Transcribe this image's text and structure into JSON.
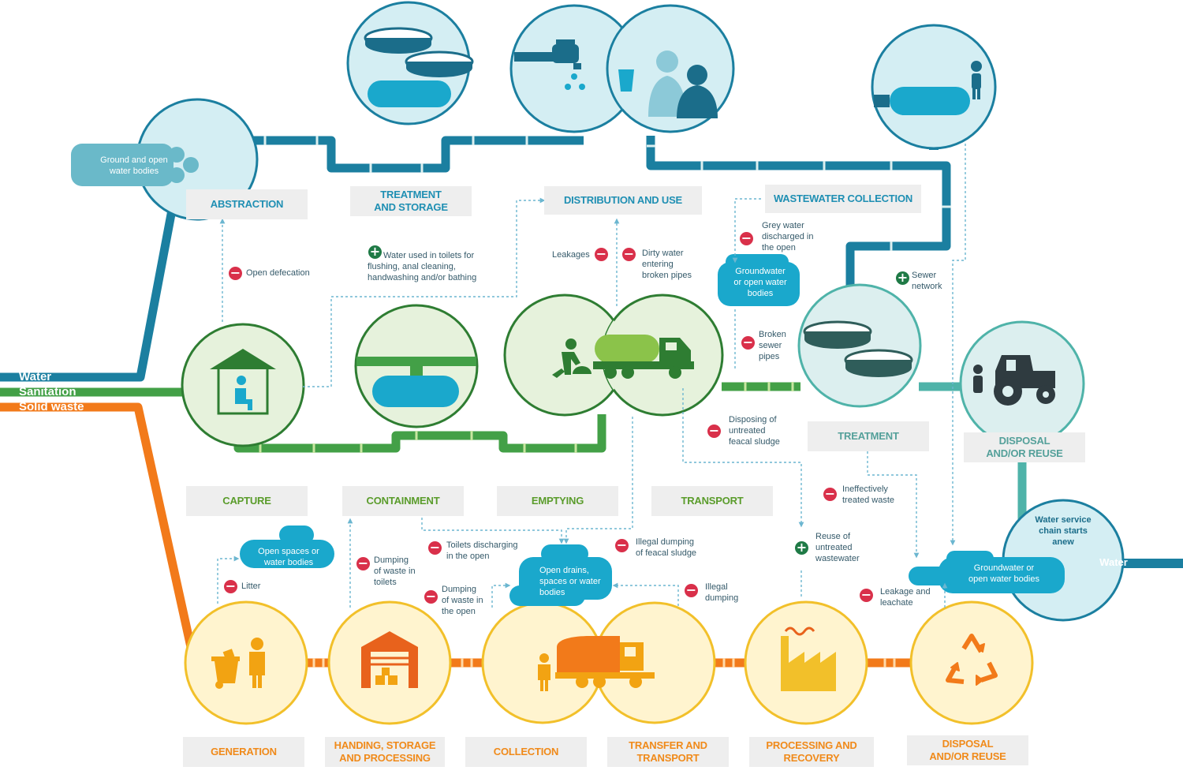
{
  "legend": {
    "water": "Water",
    "sanitation": "Sanitation",
    "solid_waste": "Solid waste"
  },
  "colors": {
    "water": "#1b7fa0",
    "sanitation": "#43a047",
    "solid_waste": "#f27a1a",
    "treated": "#4fb3a9",
    "label_bg": "#eeeeee",
    "negative": "#d9304a",
    "positive": "#1f7a46"
  },
  "stages": {
    "water": {
      "abstraction": "ABSTRACTION",
      "treatment_storage": "TREATMENT\nAND STORAGE",
      "distribution_use": "DISTRIBUTION AND USE",
      "wastewater_collection": "WASTEWATER COLLECTION"
    },
    "sanitation": {
      "capture": "CAPTURE",
      "containment": "CONTAINMENT",
      "emptying": "EMPTYING",
      "transport": "TRANSPORT",
      "treatment": "TREATMENT",
      "disposal": "DISPOSAL\nAND/OR REUSE"
    },
    "solid_waste": {
      "generation": "GENERATION",
      "handling": "HANDING, STORAGE\nAND PROCESSING",
      "collection": "COLLECTION",
      "transfer": "TRANSFER AND\nTRANSPORT",
      "processing": "PROCESSING AND\nRECOVERY",
      "disposal": "DISPOSAL\nAND/OR REUSE"
    }
  },
  "water_bodies": {
    "source": "Ground and open\nwater bodies",
    "groundwater_mid": "Groundwater\nor open water\nbodies",
    "open_spaces": "Open spaces or\nwater bodies",
    "open_drains": "Open drains,\nspaces or water\nbodies",
    "groundwater_right": "Groundwater or\nopen water bodies",
    "restart": "Water service\nchain starts\nanew",
    "water_out": "Water"
  },
  "annotations": {
    "open_defecation": "Open defecation",
    "water_used_toilets": "Water used in toilets for\nflushing, anal cleaning,\nhandwashing and/or bathing",
    "leakages": "Leakages",
    "dirty_water": "Dirty water\nentering\nbroken pipes",
    "grey_water": "Grey water\ndischarged in\nthe open",
    "sewer_network": "Sewer\nnetwork",
    "broken_sewer": "Broken\nsewer\npipes",
    "disposing_sludge": "Disposing of\nuntreated\nfeacal sludge",
    "ineffective": "Ineffectively\ntreated waste",
    "reuse_untreated": "Reuse of\nuntreated\nwastewater",
    "litter": "Litter",
    "dumping_toilets": "Dumping\nof waste in\ntoilets",
    "toilets_open": "Toilets discharging\nin the open",
    "dumping_open": "Dumping\nof waste in\nthe open",
    "illegal_sludge": "Illegal dumping\nof feacal sludge",
    "illegal_dumping": "Illegal\ndumping",
    "leakage_leachate": "Leakage and\nleachate"
  },
  "icons": [
    "storage-tanks-icon",
    "tap-icon",
    "people-icon",
    "tank-icon",
    "latrine-icon",
    "pit-tank-icon",
    "desludging-truck-icon",
    "treatment-tanks-icon",
    "tractor-icon",
    "waste-bin-icon",
    "warehouse-icon",
    "garbage-truck-icon",
    "factory-icon",
    "recycle-icon",
    "minus-icon",
    "plus-icon"
  ]
}
